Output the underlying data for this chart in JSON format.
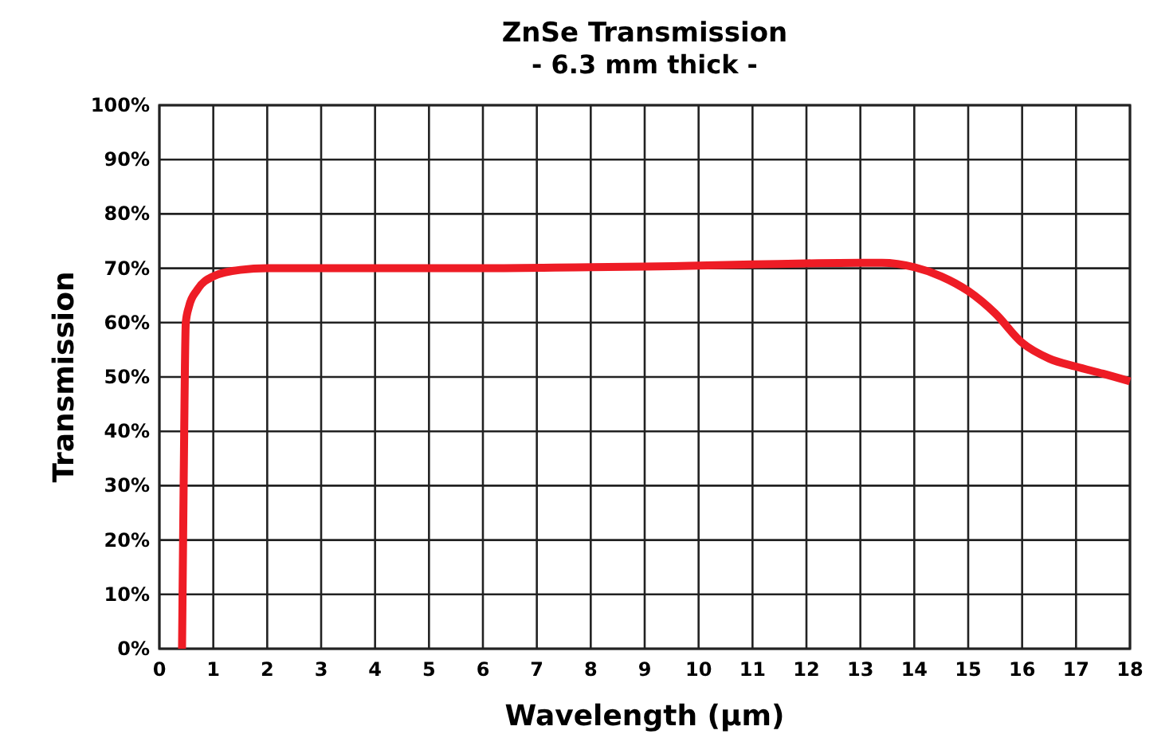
{
  "chart_data": {
    "type": "line",
    "title": "ZnSe Transmission",
    "subtitle": "- 6.3 mm thick -",
    "xlabel": "Wavelength (μm)",
    "ylabel": "Transmission",
    "xlim": [
      0,
      18
    ],
    "xticks": [
      0,
      1,
      2,
      3,
      4,
      5,
      6,
      7,
      8,
      9,
      10,
      11,
      12,
      13,
      14,
      15,
      16,
      17,
      18
    ],
    "ylim": [
      0,
      100
    ],
    "yticks": [
      {
        "value": 0,
        "label": "0%"
      },
      {
        "value": 10,
        "label": "10%"
      },
      {
        "value": 20,
        "label": "20%"
      },
      {
        "value": 30,
        "label": "30%"
      },
      {
        "value": 40,
        "label": "40%"
      },
      {
        "value": 50,
        "label": "50%"
      },
      {
        "value": 60,
        "label": "60%"
      },
      {
        "value": 70,
        "label": "70%"
      },
      {
        "value": 80,
        "label": "80%"
      },
      {
        "value": 90,
        "label": "90%"
      },
      {
        "value": 100,
        "label": "100%"
      }
    ],
    "grid": true,
    "marker": "none",
    "line_style": "solid",
    "series": [
      {
        "color": "#ee1c25",
        "x": [
          0.42,
          0.45,
          0.49,
          0.55,
          0.7,
          1.0,
          1.5,
          2,
          4,
          6,
          8,
          9,
          10,
          11,
          12,
          13,
          13.4,
          14,
          14.5,
          15,
          15.5,
          16,
          16.5,
          17,
          17.5,
          18
        ],
        "values": [
          0,
          30,
          60,
          63,
          66,
          68.5,
          69.7,
          70,
          70,
          70,
          70.2,
          70.3,
          70.5,
          70.7,
          70.9,
          71,
          71,
          70.2,
          68.5,
          65.8,
          61.7,
          56.3,
          53.4,
          51.9,
          50.6,
          49.2
        ]
      }
    ]
  }
}
